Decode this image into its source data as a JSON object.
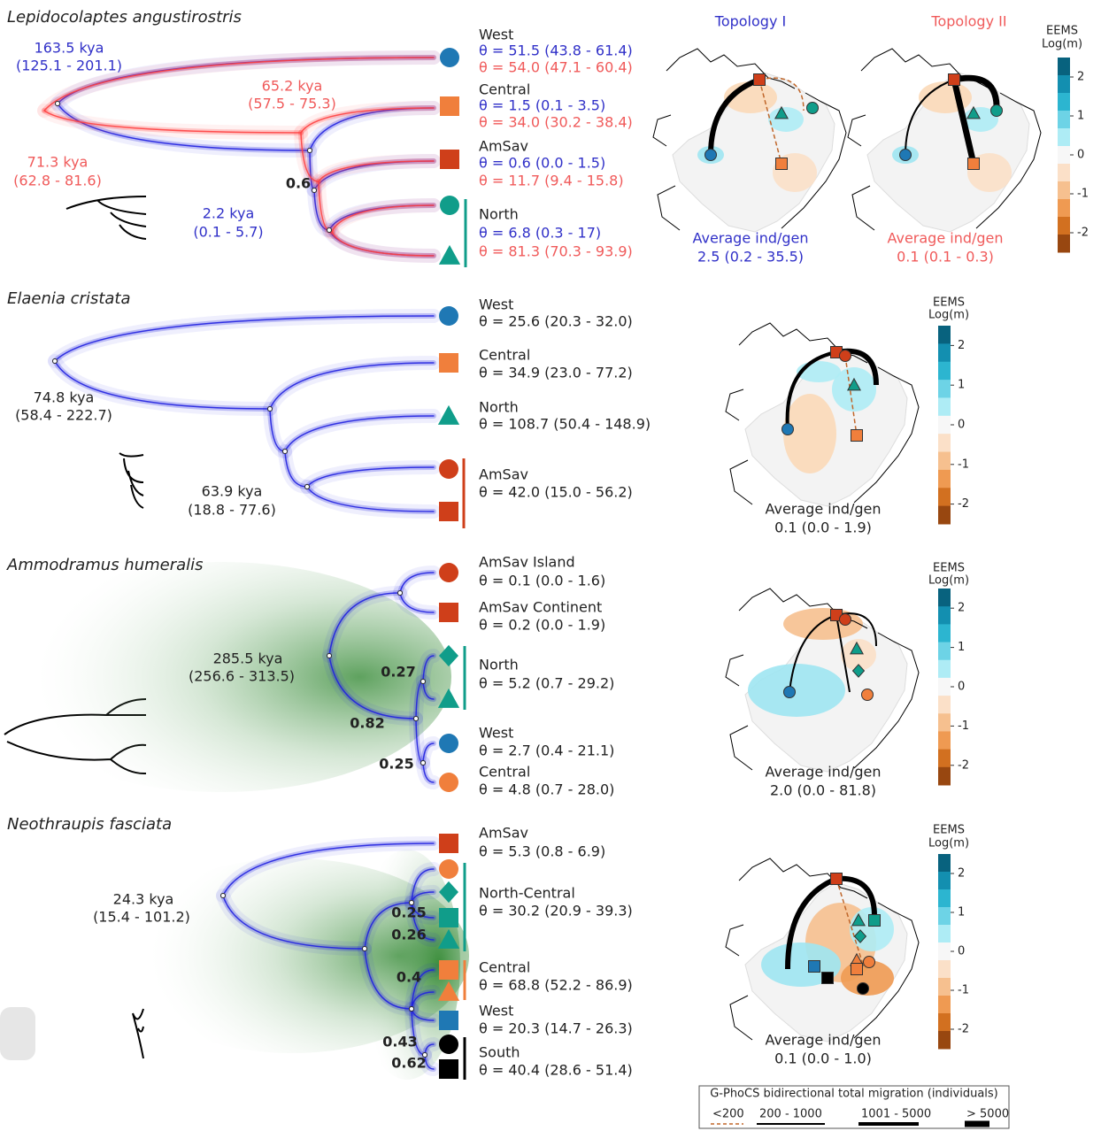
{
  "panels": [
    {
      "species": "Lepidocolaptes angustirostris",
      "nodes": [
        {
          "time": "163.5 kya",
          "ci": "(125.1 - 201.1)"
        },
        {
          "time": "65.2 kya",
          "ci": "(57.5 - 75.3)"
        },
        {
          "time": "71.3 kya",
          "ci": "(62.8 - 81.6)"
        },
        {
          "time": "2.2 kya",
          "ci": "(0.1 - 5.7)"
        }
      ],
      "supports": [
        "0.6"
      ],
      "populations": [
        {
          "name": "West",
          "theta": [
            "θ = 51.5 (43.8 - 61.4)",
            "θ = 54.0 (47.1 - 60.4)"
          ]
        },
        {
          "name": "Central",
          "theta": [
            "θ = 1.5 (0.1 - 3.5)",
            "θ = 34.0 (30.2 - 38.4)"
          ]
        },
        {
          "name": "AmSav",
          "theta": [
            "θ = 0.6 (0.0 - 1.5)",
            "θ = 11.7 (9.4 - 15.8)"
          ]
        },
        {
          "name": "North",
          "theta": [
            "θ = 6.8 (0.3 - 17)",
            "θ = 81.3 (70.3 - 93.9)"
          ]
        }
      ],
      "maps": [
        {
          "title": "Topology I",
          "avg_label": "Average ind/gen",
          "avg_value": "2.5 (0.2 - 35.5)"
        },
        {
          "title": "Topology II",
          "avg_label": "Average ind/gen",
          "avg_value": "0.1 (0.1 - 0.3)"
        }
      ],
      "eems": {
        "title": "EEMS",
        "unit": "Log(m)",
        "ticks": [
          "2",
          "1",
          "0",
          "-1",
          "-2"
        ]
      }
    },
    {
      "species": "Elaenia cristata",
      "nodes": [
        {
          "time": "74.8 kya",
          "ci": "(58.4 - 222.7)"
        },
        {
          "time": "63.9 kya",
          "ci": "(18.8 - 77.6)"
        }
      ],
      "supports": [],
      "populations": [
        {
          "name": "West",
          "theta": [
            "θ = 25.6 (20.3 - 32.0)"
          ]
        },
        {
          "name": "Central",
          "theta": [
            "θ = 34.9 (23.0 - 77.2)"
          ]
        },
        {
          "name": "North",
          "theta": [
            "θ = 108.7 (50.4 - 148.9)"
          ]
        },
        {
          "name": "AmSav",
          "theta": [
            "θ = 42.0 (15.0 - 56.2)"
          ]
        }
      ],
      "maps": [
        {
          "avg_label": "Average ind/gen",
          "avg_value": "0.1 (0.0 - 1.9)"
        }
      ],
      "eems": {
        "title": "EEMS",
        "unit": "Log(m)",
        "ticks": [
          "2",
          "1",
          "0",
          "-1",
          "-2"
        ]
      }
    },
    {
      "species": "Ammodramus humeralis",
      "nodes": [
        {
          "time": "285.5 kya",
          "ci": "(256.6 - 313.5)"
        }
      ],
      "supports": [
        "0.27",
        "0.82",
        "0.25"
      ],
      "populations": [
        {
          "name": "AmSav Island",
          "theta": [
            "θ = 0.1 (0.0 - 1.6)"
          ]
        },
        {
          "name": "AmSav Continent",
          "theta": [
            "θ = 0.2 (0.0 - 1.9)"
          ]
        },
        {
          "name": "North",
          "theta": [
            "θ = 5.2 (0.7 - 29.2)"
          ]
        },
        {
          "name": "West",
          "theta": [
            "θ = 2.7 (0.4 - 21.1)"
          ]
        },
        {
          "name": "Central",
          "theta": [
            "θ = 4.8 (0.7 - 28.0)"
          ]
        }
      ],
      "maps": [
        {
          "avg_label": "Average ind/gen",
          "avg_value": "2.0 (0.0 - 81.8)"
        }
      ],
      "eems": {
        "title": "EEMS",
        "unit": "Log(m)",
        "ticks": [
          "2",
          "1",
          "0",
          "-1",
          "-2"
        ]
      }
    },
    {
      "species": "Neothraupis fasciata",
      "nodes": [
        {
          "time": "24.3 kya",
          "ci": "(15.4 - 101.2)"
        }
      ],
      "supports": [
        "0.25",
        "0.26",
        "0.4",
        "0.43",
        "0.62"
      ],
      "populations": [
        {
          "name": "AmSav",
          "theta": [
            "θ = 5.3 (0.8 - 6.9)"
          ]
        },
        {
          "name": "North-Central",
          "theta": [
            "θ = 30.2 (20.9 - 39.3)"
          ]
        },
        {
          "name": "Central",
          "theta": [
            "θ = 68.8 (52.2 - 86.9)"
          ]
        },
        {
          "name": "West",
          "theta": [
            "θ = 20.3 (14.7 - 26.3)"
          ]
        },
        {
          "name": "South",
          "theta": [
            "θ = 40.4 (28.6 - 51.4)"
          ]
        }
      ],
      "maps": [
        {
          "avg_label": "Average ind/gen",
          "avg_value": "0.1 (0.0 - 1.0)"
        }
      ],
      "eems": {
        "title": "EEMS",
        "unit": "Log(m)",
        "ticks": [
          "2",
          "1",
          "0",
          "-1",
          "-2"
        ]
      }
    }
  ],
  "legend": {
    "title": "G-PhoCS bidirectional total migration (individuals)",
    "items": [
      "<200",
      "200 - 1000",
      "1001 - 5000",
      "> 5000"
    ]
  }
}
